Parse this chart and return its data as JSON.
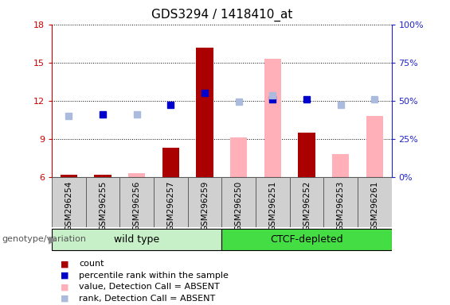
{
  "title": "GDS3294 / 1418410_at",
  "samples": [
    "GSM296254",
    "GSM296255",
    "GSM296256",
    "GSM296257",
    "GSM296259",
    "GSM296250",
    "GSM296251",
    "GSM296252",
    "GSM296253",
    "GSM296261"
  ],
  "groups": [
    {
      "name": "wild type",
      "color": "#c8f0c8",
      "indices": [
        0,
        4
      ]
    },
    {
      "name": "CTCF-depleted",
      "color": "#44dd44",
      "indices": [
        5,
        9
      ]
    }
  ],
  "group_label": "genotype/variation",
  "ylim_left": [
    6,
    18
  ],
  "ylim_right": [
    0,
    100
  ],
  "yticks_left": [
    6,
    9,
    12,
    15,
    18
  ],
  "yticks_right": [
    0,
    25,
    50,
    75,
    100
  ],
  "count": [
    6.15,
    6.2,
    null,
    8.3,
    16.2,
    null,
    null,
    9.5,
    null,
    null
  ],
  "percentile_rank": [
    null,
    10.9,
    null,
    11.7,
    12.6,
    null,
    12.1,
    12.1,
    null,
    null
  ],
  "value_absent": [
    null,
    null,
    6.3,
    null,
    null,
    9.1,
    15.3,
    null,
    7.8,
    10.8
  ],
  "rank_absent": [
    10.8,
    null,
    10.9,
    null,
    null,
    11.9,
    12.4,
    null,
    11.7,
    12.1
  ],
  "count_color": "#aa0000",
  "percentile_color": "#0000cc",
  "value_absent_color": "#ffb0b8",
  "rank_absent_color": "#aabbdd",
  "background_color": "#ffffff",
  "axis_color_left": "#cc0000",
  "axis_color_right": "#2222cc"
}
